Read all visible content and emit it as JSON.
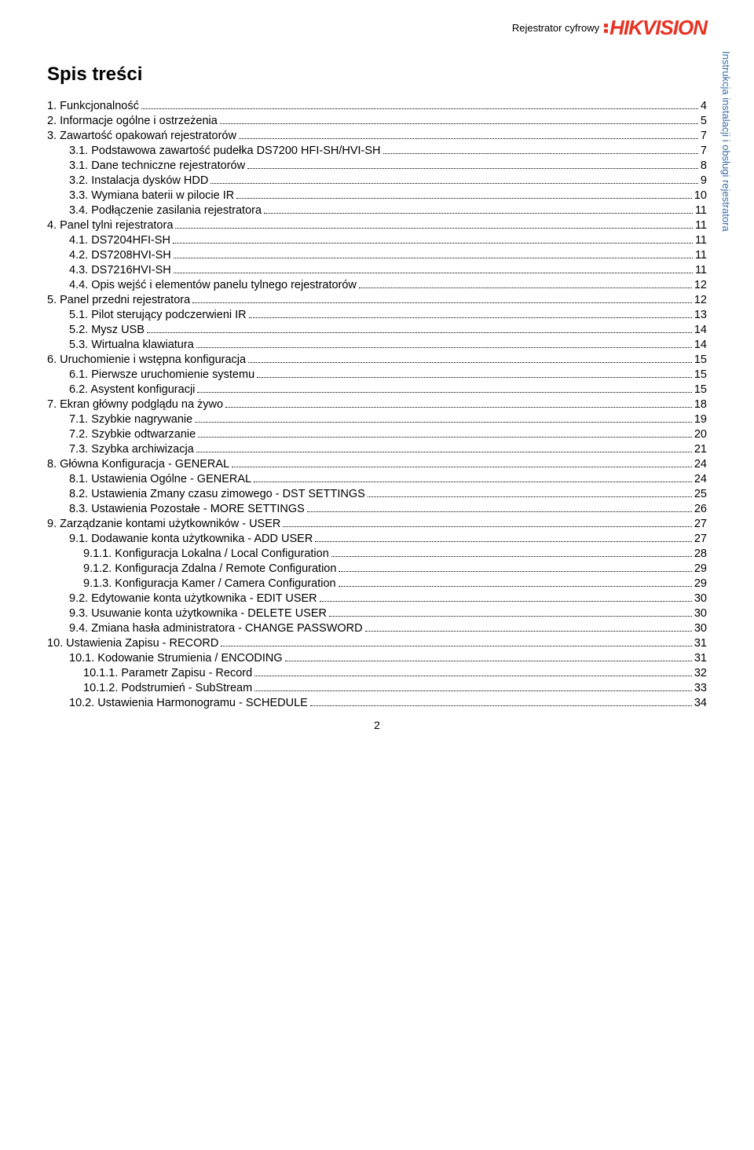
{
  "header": {
    "label": "Rejestrator cyfrowy",
    "logo_text": "HIKVISION",
    "logo_color": "#e73323"
  },
  "side_label": "Instrukcja instalacji i obsługi rejestratora",
  "side_label_color": "#3b6ea5",
  "title": "Spis treści",
  "page_number": "2",
  "toc": [
    {
      "indent": 0,
      "label": "1.    Funkcjonalność",
      "page": "4"
    },
    {
      "indent": 0,
      "label": "2.    Informacje ogólne i ostrzeżenia",
      "page": "5"
    },
    {
      "indent": 0,
      "label": "3.    Zawartość opakowań rejestratorów",
      "page": "7"
    },
    {
      "indent": 1,
      "label": "3.1.    Podstawowa zawartość pudełka DS7200 HFI-SH/HVI-SH",
      "page": "7"
    },
    {
      "indent": 1,
      "label": "3.1.    Dane techniczne rejestratorów",
      "page": "8"
    },
    {
      "indent": 1,
      "label": "3.2.    Instalacja dysków HDD",
      "page": "9"
    },
    {
      "indent": 1,
      "label": "3.3.    Wymiana baterii w pilocie IR",
      "page": "10"
    },
    {
      "indent": 1,
      "label": "3.4.    Podłączenie zasilania rejestratora",
      "page": "11"
    },
    {
      "indent": 0,
      "label": "4.    Panel tylni rejestratora",
      "page": "11"
    },
    {
      "indent": 1,
      "label": "4.1.    DS7204HFI-SH",
      "page": "11"
    },
    {
      "indent": 1,
      "label": "4.2.    DS7208HVI-SH",
      "page": "11"
    },
    {
      "indent": 1,
      "label": "4.3.    DS7216HVI-SH",
      "page": "11"
    },
    {
      "indent": 1,
      "label": "4.4.    Opis wejść i elementów panelu tylnego rejestratorów",
      "page": "12"
    },
    {
      "indent": 0,
      "label": "5.    Panel przedni rejestratora",
      "page": "12"
    },
    {
      "indent": 1,
      "label": "5.1.    Pilot sterujący podczerwieni IR",
      "page": "13"
    },
    {
      "indent": 1,
      "label": "5.2.    Mysz USB",
      "page": "14"
    },
    {
      "indent": 1,
      "label": "5.3.    Wirtualna klawiatura",
      "page": "14"
    },
    {
      "indent": 0,
      "label": "6.    Uruchomienie i wstępna konfiguracja",
      "page": "15"
    },
    {
      "indent": 1,
      "label": "6.1.    Pierwsze uruchomienie systemu",
      "page": "15"
    },
    {
      "indent": 1,
      "label": "6.2.    Asystent konfiguracji",
      "page": "15"
    },
    {
      "indent": 0,
      "label": "7.    Ekran główny podglądu na żywo",
      "page": "18"
    },
    {
      "indent": 1,
      "label": "7.1.    Szybkie nagrywanie",
      "page": "19"
    },
    {
      "indent": 1,
      "label": "7.2.    Szybkie odtwarzanie",
      "page": "20"
    },
    {
      "indent": 1,
      "label": "7.3.    Szybka archiwizacja",
      "page": "21"
    },
    {
      "indent": 0,
      "label": "8.    Główna Konfiguracja - GENERAL",
      "page": "24"
    },
    {
      "indent": 1,
      "label": "8.1. Ustawienia Ogólne - GENERAL",
      "page": "24"
    },
    {
      "indent": 1,
      "label": "8.2.    Ustawienia Zmany czasu zimowego - DST SETTINGS",
      "page": "25"
    },
    {
      "indent": 1,
      "label": "8.3.    Ustawienia Pozostałe - MORE SETTINGS",
      "page": "26"
    },
    {
      "indent": 0,
      "label": "9.    Zarządzanie kontami użytkowników - USER",
      "page": "27"
    },
    {
      "indent": 1,
      "label": "9.1. Dodawanie konta użytkownika - ADD USER",
      "page": "27"
    },
    {
      "indent": 2,
      "label": "9.1.1. Konfiguracja Lokalna / Local Configuration",
      "page": "28"
    },
    {
      "indent": 2,
      "label": "9.1.2. Konfiguracja Zdalna / Remote Configuration",
      "page": "29"
    },
    {
      "indent": 2,
      "label": "9.1.3. Konfiguracja Kamer / Camera Configuration",
      "page": "29"
    },
    {
      "indent": 1,
      "label": "9.2.    Edytowanie konta użytkownika - EDIT USER",
      "page": "30"
    },
    {
      "indent": 1,
      "label": "9.3.    Usuwanie konta użytkownika - DELETE USER",
      "page": "30"
    },
    {
      "indent": 1,
      "label": "9.4.    Zmiana hasła administratora - CHANGE PASSWORD",
      "page": "30"
    },
    {
      "indent": 0,
      "label": "10.  Ustawienia Zapisu - RECORD",
      "page": "31"
    },
    {
      "indent": 1,
      "label": "10.1. Kodowanie Strumienia / ENCODING",
      "page": "31"
    },
    {
      "indent": 2,
      "label": "10.1.1. Parametr Zapisu - Record",
      "page": "32"
    },
    {
      "indent": 2,
      "label": "10.1.2. Podstrumień - SubStream",
      "page": "33"
    },
    {
      "indent": 1,
      "label": "10.2.  Ustawienia Harmonogramu - SCHEDULE",
      "page": "34"
    }
  ]
}
